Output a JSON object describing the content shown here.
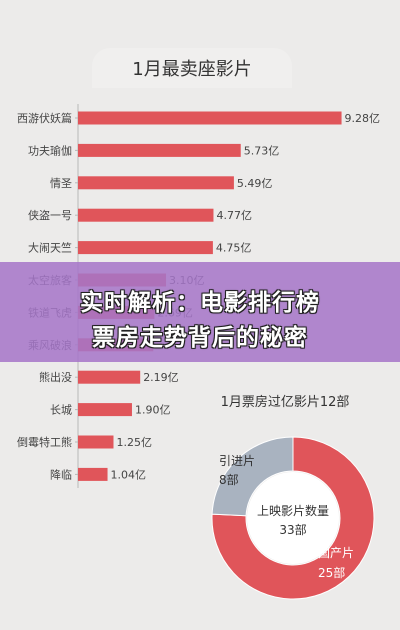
{
  "header": {
    "title": "1月最卖座影片"
  },
  "banner": {
    "line1": "实时解析：电影排行榜",
    "line2": "票房走势背后的秘密"
  },
  "colors": {
    "bar": "#e0555a",
    "pie_domestic": "#e0555a",
    "pie_import": "#a9b3c0",
    "background": "#ecebea"
  },
  "chart_data": [
    {
      "type": "bar",
      "orientation": "horizontal",
      "title": "1月最卖座影片",
      "categories": [
        "西游伏妖篇",
        "功夫瑜伽",
        "情圣",
        "侠盗一号",
        "大闹天竺",
        "太空旅客",
        "铁道飞虎",
        "乘风破浪",
        "熊出没",
        "长城",
        "倒霉特工熊",
        "降临"
      ],
      "values": [
        9.28,
        5.73,
        5.49,
        4.77,
        4.75,
        3.1,
        2.69,
        2.65,
        2.19,
        1.9,
        1.25,
        1.04
      ],
      "labels": [
        "9.28亿",
        "5.73亿",
        "5.49亿",
        "4.77亿",
        "4.75亿",
        "3.10亿",
        "2.69亿",
        "",
        "2.19亿",
        "1.90亿",
        "1.25亿",
        "1.04亿"
      ],
      "xlim": [
        0,
        10
      ]
    },
    {
      "type": "pie",
      "variant": "donut",
      "title": "1月票房过亿影片12部",
      "center_label": "上映影片数量",
      "center_value": "33部",
      "slices": [
        {
          "name": "国产片",
          "value": 25,
          "label": "25部"
        },
        {
          "name": "引进片",
          "value": 8,
          "label": "8部"
        }
      ]
    }
  ]
}
